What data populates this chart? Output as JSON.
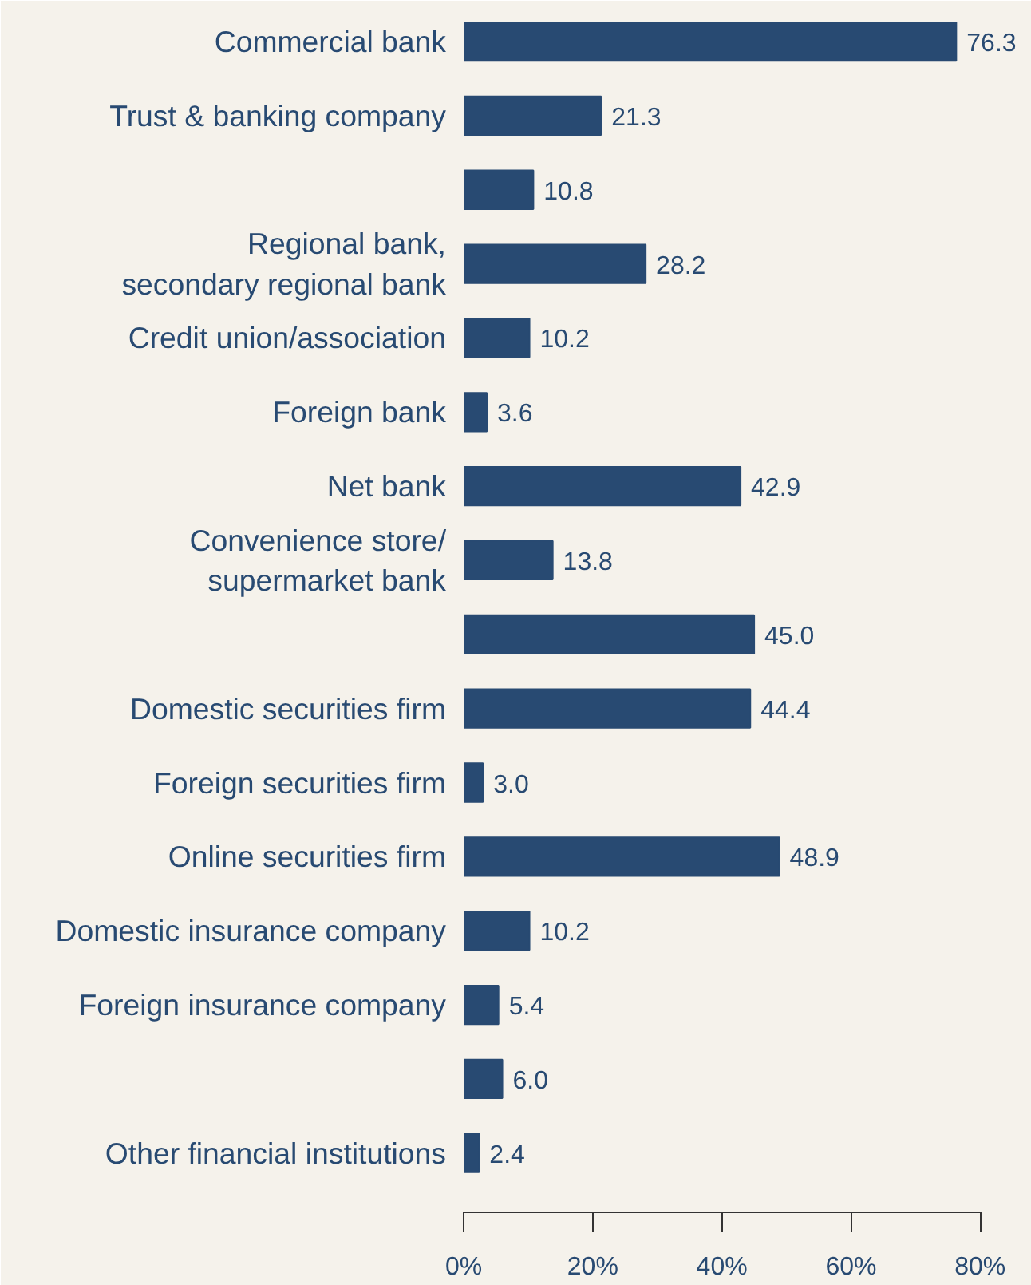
{
  "chart_data": {
    "type": "bar",
    "orientation": "horizontal",
    "categories": [
      "Commercial bank",
      "Trust & banking company",
      null,
      "Regional bank,\nsecondary regional bank",
      "Credit union/association",
      "Foreign bank",
      "Net bank",
      "Convenience store/\nsupermarket bank",
      null,
      "Domestic securities firm",
      "Foreign securities firm",
      "Online securities firm",
      "Domestic insurance company",
      "Foreign insurance company",
      null,
      "Other financial institutions"
    ],
    "values": [
      76.3,
      21.3,
      10.8,
      28.2,
      10.2,
      3.6,
      42.9,
      13.8,
      45.0,
      44.4,
      3.0,
      48.9,
      10.2,
      5.4,
      6.0,
      2.4
    ],
    "value_labels": [
      "76.3",
      "21.3",
      "10.8",
      "28.2",
      "10.2",
      "3.6",
      "42.9",
      "13.8",
      "45.0",
      "44.4",
      "3.0",
      "48.9",
      "10.2",
      "5.4",
      "6.0",
      "2.4"
    ],
    "color": "#284a72",
    "xlim": [
      0,
      80
    ],
    "xticks": [
      {
        "value": 0,
        "label": "0%"
      },
      {
        "value": 20,
        "label": "20%"
      },
      {
        "value": 40,
        "label": "40%"
      },
      {
        "value": 60,
        "label": "60%"
      },
      {
        "value": 80,
        "label": "80%"
      }
    ],
    "grid": false
  }
}
